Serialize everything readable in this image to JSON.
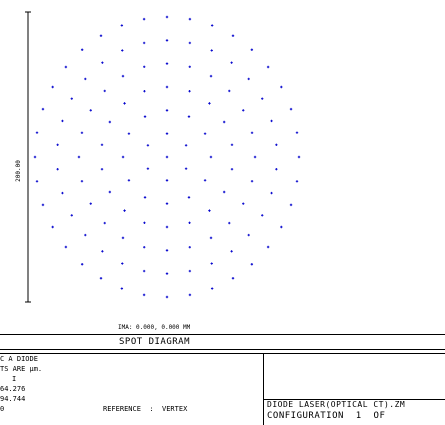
{
  "chart_data": {
    "type": "scatter",
    "title": "SPOT DIAGRAM",
    "field_label": "IMA: 0.000, 0.000 MM",
    "scale_label": "200.00",
    "point_color": "#0000cc",
    "rings": [
      {
        "count": 1,
        "radius": 0.0
      },
      {
        "count": 6,
        "radius": 0.167
      },
      {
        "count": 12,
        "radius": 0.333
      },
      {
        "count": 18,
        "radius": 0.5
      },
      {
        "count": 24,
        "radius": 0.667
      },
      {
        "count": 30,
        "radius": 0.833
      },
      {
        "count": 36,
        "radius": 1.0
      }
    ]
  },
  "footer": {
    "left_lines": [
      "C A DIODE",
      "TS ARE µm.",
      "I",
      "64.276",
      "94.744",
      "0"
    ],
    "reference": "REFERENCE  :  VERTEX",
    "right_line1": "DIODE LASER(OPTICAL CT).ZM",
    "right_line2": "CONFIGURATION  1  OF"
  }
}
